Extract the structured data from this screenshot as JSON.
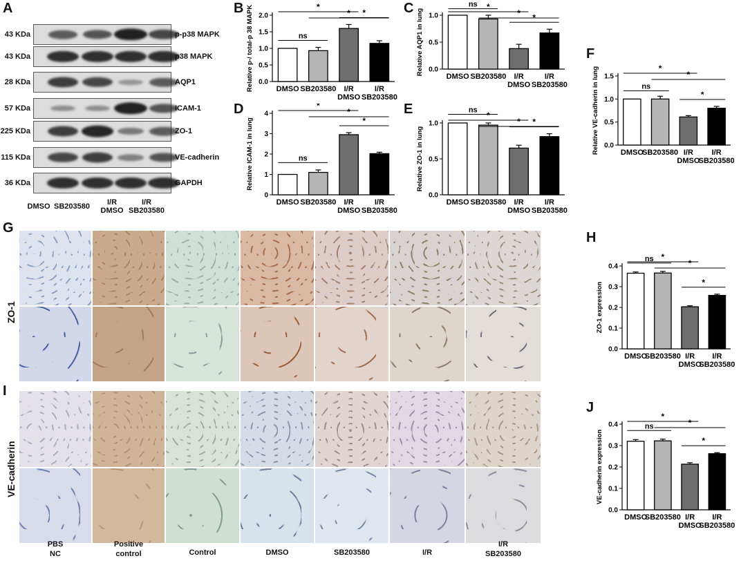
{
  "panels": {
    "A": "A",
    "B": "B",
    "C": "C",
    "D": "D",
    "E": "E",
    "F": "F",
    "G": "G",
    "H": "H",
    "I": "I",
    "J": "J"
  },
  "western_blot": {
    "rows": [
      {
        "kda": "43 KDa",
        "protein": "p-p38 MAPK",
        "intensity": [
          0.55,
          0.6,
          0.95,
          0.7
        ]
      },
      {
        "kda": "43 KDa",
        "protein": "p38 MAPK",
        "intensity": [
          0.85,
          0.85,
          0.85,
          0.85
        ]
      },
      {
        "kda": "28 KDa",
        "protein": "AQP1",
        "intensity": [
          0.75,
          0.7,
          0.15,
          0.55
        ]
      },
      {
        "kda": "57 KDa",
        "protein": "ICAM-1",
        "intensity": [
          0.2,
          0.2,
          0.95,
          0.6
        ]
      },
      {
        "kda": "225 KDa",
        "protein": "ZO-1",
        "intensity": [
          0.75,
          0.9,
          0.35,
          0.55
        ]
      },
      {
        "kda": "115 KDa",
        "protein": "VE-cadherin",
        "intensity": [
          0.7,
          0.75,
          0.3,
          0.6
        ]
      },
      {
        "kda": "36 KDa",
        "protein": "GAPDH",
        "intensity": [
          0.85,
          0.85,
          0.85,
          0.85
        ]
      }
    ],
    "groups": [
      "DMSO",
      "SB203580",
      "I/R\nDMSO",
      "I/R\nSB203580"
    ]
  },
  "tissue_labels": {
    "zo1": "ZO-1",
    "vecad": "VE-cadherin"
  },
  "micro_columns": [
    "PBS\nNC",
    "Positive\ncontrol",
    "Control",
    "DMSO",
    "SB203580",
    "I/R",
    "I/R\nSB203580"
  ],
  "chart_data": [
    {
      "panel": "B",
      "type": "bar",
      "categories": [
        "DMSO",
        "SB203580",
        "I/R\nDMSO",
        "I/R\nSB203580"
      ],
      "values": [
        1.0,
        0.93,
        1.6,
        1.15
      ],
      "errors": [
        0.0,
        0.1,
        0.12,
        0.08
      ],
      "ylabel": "Relative p-/ total-p 38 MAPK",
      "ylim": [
        0,
        2.0
      ],
      "yticks": [
        0.0,
        0.5,
        1.0,
        1.5,
        2.0
      ],
      "colors": [
        "#ffffff",
        "#b5b5b5",
        "#6e6e6e",
        "#000000"
      ],
      "sig": [
        {
          "a": 0,
          "b": 1,
          "text": "ns"
        },
        {
          "a": 0,
          "b": 2,
          "text": "*"
        },
        {
          "a": 1,
          "b": 3,
          "text": "*"
        },
        {
          "a": 2,
          "b": 3,
          "text": "*"
        }
      ]
    },
    {
      "panel": "C",
      "type": "bar",
      "categories": [
        "DMSO",
        "SB203580",
        "I/R\nDMSO",
        "I/R\nSB203580"
      ],
      "values": [
        1.0,
        0.93,
        0.38,
        0.67
      ],
      "errors": [
        0.0,
        0.07,
        0.08,
        0.07
      ],
      "ylabel": "Relative AQP1  in lung",
      "ylim": [
        0,
        1.0
      ],
      "yticks": [
        0.0,
        0.5,
        1.0
      ],
      "colors": [
        "#ffffff",
        "#b5b5b5",
        "#6e6e6e",
        "#000000"
      ],
      "sig": [
        {
          "a": 0,
          "b": 1,
          "text": "ns"
        },
        {
          "a": 0,
          "b": 2,
          "text": "*"
        },
        {
          "a": 1,
          "b": 3,
          "text": "*"
        },
        {
          "a": 2,
          "b": 3,
          "text": "*"
        }
      ]
    },
    {
      "panel": "D",
      "type": "bar",
      "categories": [
        "DMSO",
        "SB203580",
        "I/R\nDMSO",
        "I/R\nSB203580"
      ],
      "values": [
        1.0,
        1.1,
        2.95,
        2.02
      ],
      "errors": [
        0.0,
        0.12,
        0.1,
        0.07
      ],
      "ylabel": "Relative ICAM-1  in lung",
      "ylim": [
        0,
        4
      ],
      "yticks": [
        0,
        1,
        2,
        3,
        4
      ],
      "colors": [
        "#ffffff",
        "#b5b5b5",
        "#6e6e6e",
        "#000000"
      ],
      "sig": [
        {
          "a": 0,
          "b": 1,
          "text": "ns"
        },
        {
          "a": 0,
          "b": 2,
          "text": "*"
        },
        {
          "a": 1,
          "b": 3,
          "text": "*"
        },
        {
          "a": 2,
          "b": 3,
          "text": "*"
        }
      ]
    },
    {
      "panel": "E",
      "type": "bar",
      "categories": [
        "DMSO",
        "SB203580",
        "I/R\nDMSO",
        "I/R\nSB203580"
      ],
      "values": [
        1.0,
        0.97,
        0.65,
        0.81
      ],
      "errors": [
        0.0,
        0.03,
        0.04,
        0.04
      ],
      "ylabel": "Relative ZO-1  in lung",
      "ylim": [
        0,
        1.0
      ],
      "yticks": [
        0.0,
        0.5,
        1.0
      ],
      "colors": [
        "#ffffff",
        "#b5b5b5",
        "#6e6e6e",
        "#000000"
      ],
      "sig": [
        {
          "a": 0,
          "b": 1,
          "text": "ns"
        },
        {
          "a": 0,
          "b": 2,
          "text": "*"
        },
        {
          "a": 1,
          "b": 3,
          "text": "*"
        },
        {
          "a": 2,
          "b": 3,
          "text": "*"
        }
      ]
    },
    {
      "panel": "F",
      "type": "bar",
      "categories": [
        "DMSO",
        "SB203580",
        "I/R\nDMSO",
        "I/R\nSB203580"
      ],
      "values": [
        1.0,
        1.0,
        0.61,
        0.8
      ],
      "errors": [
        0.0,
        0.06,
        0.03,
        0.04
      ],
      "ylabel": "Relative VE-cadherin  in lung",
      "ylim": [
        0,
        1.5
      ],
      "yticks": [
        0.0,
        0.5,
        1.0,
        1.5
      ],
      "colors": [
        "#ffffff",
        "#b5b5b5",
        "#6e6e6e",
        "#000000"
      ],
      "sig": [
        {
          "a": 0,
          "b": 1,
          "text": "ns"
        },
        {
          "a": 0,
          "b": 2,
          "text": "*"
        },
        {
          "a": 1,
          "b": 3,
          "text": "*"
        },
        {
          "a": 2,
          "b": 3,
          "text": "*"
        }
      ]
    },
    {
      "panel": "H",
      "type": "bar",
      "categories": [
        "DMSO",
        "SB203580",
        "I/R\nDMSO",
        "I/R\nSB203580"
      ],
      "values": [
        0.365,
        0.366,
        0.203,
        0.258
      ],
      "errors": [
        0.006,
        0.008,
        0.005,
        0.006
      ],
      "ylabel": "ZO-1 expression",
      "ylim": [
        0,
        0.4
      ],
      "yticks": [
        0.0,
        0.1,
        0.2,
        0.3,
        0.4
      ],
      "colors": [
        "#ffffff",
        "#b5b5b5",
        "#6e6e6e",
        "#000000"
      ],
      "sig": [
        {
          "a": 0,
          "b": 1,
          "text": "ns"
        },
        {
          "a": 0,
          "b": 2,
          "text": "*"
        },
        {
          "a": 1,
          "b": 3,
          "text": "*"
        },
        {
          "a": 2,
          "b": 3,
          "text": "*"
        }
      ]
    },
    {
      "panel": "J",
      "type": "bar",
      "categories": [
        "DMSO",
        "SB203580",
        "I/R\nDMSO",
        "I/R\nSB203580"
      ],
      "values": [
        0.32,
        0.322,
        0.213,
        0.262
      ],
      "errors": [
        0.008,
        0.008,
        0.007,
        0.005
      ],
      "ylabel": "VE-cadherin expression",
      "ylim": [
        0,
        0.4
      ],
      "yticks": [
        0.0,
        0.1,
        0.2,
        0.3,
        0.4
      ],
      "colors": [
        "#ffffff",
        "#b5b5b5",
        "#6e6e6e",
        "#000000"
      ],
      "sig": [
        {
          "a": 0,
          "b": 1,
          "text": "ns"
        },
        {
          "a": 0,
          "b": 2,
          "text": "*"
        },
        {
          "a": 1,
          "b": 3,
          "text": "*"
        },
        {
          "a": 2,
          "b": 3,
          "text": "*"
        }
      ]
    }
  ]
}
